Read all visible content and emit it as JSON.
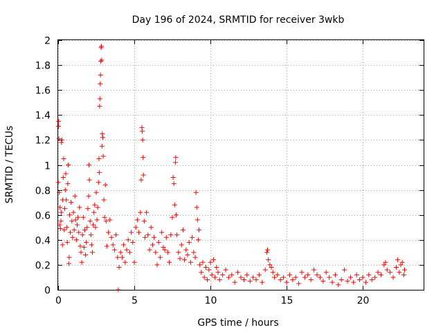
{
  "chart_data": {
    "type": "scatter",
    "title": "Day 196 of 2024, SRMTID for receiver 3wkb",
    "xlabel": "GPS time / hours",
    "ylabel": "SRMTID / TECUs",
    "xlim": [
      0,
      24
    ],
    "ylim": [
      0,
      2
    ],
    "xticks": [
      0,
      5,
      10,
      15,
      20
    ],
    "xtick_labels": [
      "0",
      "5",
      "10",
      "15",
      "20"
    ],
    "yticks": [
      0,
      0.2,
      0.4,
      0.6,
      0.8,
      1,
      1.2,
      1.4,
      1.6,
      1.8,
      2
    ],
    "ytick_labels": [
      "0",
      "0.2",
      "0.4",
      "0.6",
      "0.8",
      "1",
      "1.2",
      "1.4",
      "1.6",
      "1.8",
      "2"
    ],
    "grid": true,
    "marker": "+",
    "marker_color": "#ff0000",
    "series": [
      {
        "name": "SRMTID",
        "points": [
          [
            0.0,
            0.86
          ],
          [
            0.02,
            1.31
          ],
          [
            0.03,
            1.35
          ],
          [
            0.05,
            1.21
          ],
          [
            0.07,
            0.78
          ],
          [
            0.1,
            0.52
          ],
          [
            0.12,
            0.66
          ],
          [
            0.15,
            0.49
          ],
          [
            0.18,
            0.55
          ],
          [
            0.2,
            0.62
          ],
          [
            0.22,
            1.18
          ],
          [
            0.25,
            1.2
          ],
          [
            0.28,
            0.36
          ],
          [
            0.3,
            0.72
          ],
          [
            0.33,
            0.9
          ],
          [
            0.36,
            1.05
          ],
          [
            0.4,
            0.48
          ],
          [
            0.43,
            0.65
          ],
          [
            0.47,
            0.8
          ],
          [
            0.5,
            0.93
          ],
          [
            0.53,
            0.72
          ],
          [
            0.56,
            0.5
          ],
          [
            0.6,
            0.38
          ],
          [
            0.63,
            0.85
          ],
          [
            0.66,
            1.0
          ],
          [
            0.7,
            0.21
          ],
          [
            0.72,
            0.26
          ],
          [
            0.75,
            0.6
          ],
          [
            0.8,
            0.46
          ],
          [
            0.85,
            0.7
          ],
          [
            0.9,
            0.55
          ],
          [
            0.95,
            0.42
          ],
          [
            1.0,
            0.62
          ],
          [
            1.05,
            0.48
          ],
          [
            1.1,
            0.75
          ],
          [
            1.15,
            0.56
          ],
          [
            1.2,
            0.4
          ],
          [
            1.25,
            0.52
          ],
          [
            1.3,
            0.58
          ],
          [
            1.35,
            0.46
          ],
          [
            1.4,
            0.66
          ],
          [
            1.45,
            0.35
          ],
          [
            1.5,
            0.3
          ],
          [
            1.55,
            0.22
          ],
          [
            1.6,
            0.44
          ],
          [
            1.65,
            0.58
          ],
          [
            1.7,
            0.34
          ],
          [
            1.75,
            0.48
          ],
          [
            1.8,
            0.28
          ],
          [
            1.85,
            0.38
          ],
          [
            1.9,
            0.5
          ],
          [
            1.95,
            0.65
          ],
          [
            2.0,
            0.75
          ],
          [
            2.02,
            1.0
          ],
          [
            2.05,
            0.88
          ],
          [
            2.1,
            0.55
          ],
          [
            2.15,
            0.44
          ],
          [
            2.2,
            0.36
          ],
          [
            2.25,
            0.3
          ],
          [
            2.3,
            0.52
          ],
          [
            2.35,
            0.62
          ],
          [
            2.4,
            0.68
          ],
          [
            2.45,
            0.5
          ],
          [
            2.5,
            0.78
          ],
          [
            2.55,
            0.56
          ],
          [
            2.6,
            0.66
          ],
          [
            2.65,
            0.86
          ],
          [
            2.68,
            1.05
          ],
          [
            2.7,
            0.94
          ],
          [
            2.72,
            1.47
          ],
          [
            2.74,
            1.53
          ],
          [
            2.76,
            1.65
          ],
          [
            2.78,
            1.72
          ],
          [
            2.8,
            1.83
          ],
          [
            2.82,
            1.94
          ],
          [
            2.84,
            1.95
          ],
          [
            2.86,
            1.84
          ],
          [
            2.88,
            1.15
          ],
          [
            2.9,
            1.25
          ],
          [
            2.93,
            1.22
          ],
          [
            2.96,
            1.07
          ],
          [
            3.0,
            0.72
          ],
          [
            3.05,
            0.58
          ],
          [
            3.1,
            0.84
          ],
          [
            3.15,
            0.55
          ],
          [
            3.2,
            0.35
          ],
          [
            3.3,
            0.46
          ],
          [
            3.4,
            0.56
          ],
          [
            3.5,
            0.42
          ],
          [
            3.6,
            0.36
          ],
          [
            3.7,
            0.32
          ],
          [
            3.8,
            0.44
          ],
          [
            3.9,
            0.26
          ],
          [
            3.95,
            0.0
          ],
          [
            4.0,
            0.18
          ],
          [
            4.1,
            0.3
          ],
          [
            4.2,
            0.26
          ],
          [
            4.3,
            0.36
          ],
          [
            4.4,
            0.22
          ],
          [
            4.5,
            0.32
          ],
          [
            4.6,
            0.4
          ],
          [
            4.7,
            0.3
          ],
          [
            4.8,
            0.46
          ],
          [
            4.9,
            0.38
          ],
          [
            5.0,
            0.22
          ],
          [
            5.1,
            0.5
          ],
          [
            5.2,
            0.56
          ],
          [
            5.3,
            0.46
          ],
          [
            5.4,
            0.62
          ],
          [
            5.45,
            0.88
          ],
          [
            5.5,
            1.3
          ],
          [
            5.52,
            1.27
          ],
          [
            5.55,
            1.2
          ],
          [
            5.58,
            1.06
          ],
          [
            5.6,
            0.92
          ],
          [
            5.65,
            0.55
          ],
          [
            5.7,
            0.42
          ],
          [
            5.8,
            0.62
          ],
          [
            5.9,
            0.44
          ],
          [
            6.0,
            0.32
          ],
          [
            6.1,
            0.5
          ],
          [
            6.2,
            0.36
          ],
          [
            6.3,
            0.42
          ],
          [
            6.4,
            0.3
          ],
          [
            6.5,
            0.2
          ],
          [
            6.6,
            0.38
          ],
          [
            6.7,
            0.26
          ],
          [
            6.8,
            0.46
          ],
          [
            6.9,
            0.34
          ],
          [
            7.0,
            0.32
          ],
          [
            7.1,
            0.42
          ],
          [
            7.2,
            0.3
          ],
          [
            7.3,
            0.22
          ],
          [
            7.4,
            0.44
          ],
          [
            7.5,
            0.58
          ],
          [
            7.55,
            0.9
          ],
          [
            7.6,
            0.85
          ],
          [
            7.65,
            0.68
          ],
          [
            7.7,
            1.02
          ],
          [
            7.72,
            1.06
          ],
          [
            7.75,
            0.6
          ],
          [
            7.8,
            0.44
          ],
          [
            7.9,
            0.3
          ],
          [
            8.0,
            0.25
          ],
          [
            8.1,
            0.36
          ],
          [
            8.2,
            0.48
          ],
          [
            8.3,
            0.24
          ],
          [
            8.4,
            0.32
          ],
          [
            8.5,
            0.28
          ],
          [
            8.6,
            0.38
          ],
          [
            8.7,
            0.22
          ],
          [
            8.8,
            0.42
          ],
          [
            8.9,
            0.3
          ],
          [
            9.0,
            0.26
          ],
          [
            9.05,
            0.78
          ],
          [
            9.1,
            0.66
          ],
          [
            9.15,
            0.56
          ],
          [
            9.2,
            0.4
          ],
          [
            9.25,
            0.48
          ],
          [
            9.3,
            0.2
          ],
          [
            9.4,
            0.14
          ],
          [
            9.5,
            0.22
          ],
          [
            9.6,
            0.1
          ],
          [
            9.7,
            0.18
          ],
          [
            9.8,
            0.08
          ],
          [
            9.9,
            0.16
          ],
          [
            10.0,
            0.22
          ],
          [
            10.1,
            0.12
          ],
          [
            10.2,
            0.24
          ],
          [
            10.3,
            0.1
          ],
          [
            10.4,
            0.18
          ],
          [
            10.5,
            0.14
          ],
          [
            10.6,
            0.08
          ],
          [
            10.8,
            0.12
          ],
          [
            11.0,
            0.16
          ],
          [
            11.2,
            0.1
          ],
          [
            11.4,
            0.12
          ],
          [
            11.6,
            0.06
          ],
          [
            11.8,
            0.14
          ],
          [
            12.0,
            0.1
          ],
          [
            12.2,
            0.08
          ],
          [
            12.4,
            0.12
          ],
          [
            12.6,
            0.07
          ],
          [
            12.8,
            0.1
          ],
          [
            13.0,
            0.08
          ],
          [
            13.2,
            0.12
          ],
          [
            13.4,
            0.06
          ],
          [
            13.6,
            0.16
          ],
          [
            13.7,
            0.3
          ],
          [
            13.75,
            0.32
          ],
          [
            13.8,
            0.24
          ],
          [
            13.9,
            0.2
          ],
          [
            14.0,
            0.18
          ],
          [
            14.1,
            0.14
          ],
          [
            14.2,
            0.1
          ],
          [
            14.4,
            0.12
          ],
          [
            14.6,
            0.08
          ],
          [
            14.8,
            0.1
          ],
          [
            15.0,
            0.06
          ],
          [
            15.2,
            0.12
          ],
          [
            15.4,
            0.08
          ],
          [
            15.6,
            0.1
          ],
          [
            15.8,
            0.05
          ],
          [
            16.0,
            0.14
          ],
          [
            16.2,
            0.1
          ],
          [
            16.4,
            0.12
          ],
          [
            16.6,
            0.08
          ],
          [
            16.8,
            0.16
          ],
          [
            17.0,
            0.12
          ],
          [
            17.2,
            0.1
          ],
          [
            17.4,
            0.07
          ],
          [
            17.6,
            0.14
          ],
          [
            17.8,
            0.1
          ],
          [
            18.0,
            0.06
          ],
          [
            18.2,
            0.12
          ],
          [
            18.4,
            0.04
          ],
          [
            18.6,
            0.08
          ],
          [
            18.8,
            0.16
          ],
          [
            19.0,
            0.07
          ],
          [
            19.2,
            0.1
          ],
          [
            19.4,
            0.06
          ],
          [
            19.6,
            0.12
          ],
          [
            19.8,
            0.08
          ],
          [
            20.0,
            0.1
          ],
          [
            20.2,
            0.06
          ],
          [
            20.4,
            0.12
          ],
          [
            20.6,
            0.08
          ],
          [
            20.8,
            0.1
          ],
          [
            21.0,
            0.14
          ],
          [
            21.2,
            0.12
          ],
          [
            21.4,
            0.2
          ],
          [
            21.5,
            0.22
          ],
          [
            21.6,
            0.16
          ],
          [
            21.8,
            0.14
          ],
          [
            22.0,
            0.1
          ],
          [
            22.2,
            0.18
          ],
          [
            22.3,
            0.24
          ],
          [
            22.4,
            0.14
          ],
          [
            22.5,
            0.2
          ],
          [
            22.6,
            0.22
          ],
          [
            22.7,
            0.12
          ],
          [
            22.75,
            0.16
          ]
        ]
      }
    ]
  }
}
